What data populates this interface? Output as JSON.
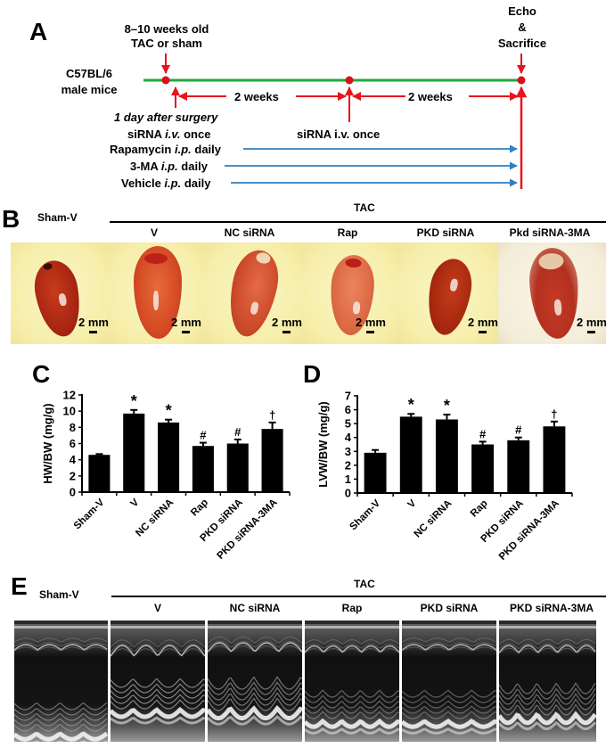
{
  "panelA": {
    "letter": "A",
    "strain": [
      "C57BL/6",
      "male mice"
    ],
    "surgery_label": [
      "8–10 weeks old",
      "TAC or sham"
    ],
    "endpoint_label": [
      "Echo",
      "&",
      "Sacrifice"
    ],
    "interval1": "2 weeks",
    "interval2": "2 weeks",
    "day1_label": "1 day after surgery",
    "sirna1_prefix": "siRNA ",
    "sirna1_route": "i.v.",
    "sirna1_suffix": " once",
    "sirna2_label": "siRNA i.v. once",
    "treatments": [
      {
        "name": "Rapamycin ",
        "route": "i.p.",
        "freq": " daily"
      },
      {
        "name": "3-MA ",
        "route": "i.p.",
        "freq": " daily"
      },
      {
        "name": "Vehicle ",
        "route": "i.p.",
        "freq": " daily"
      }
    ],
    "colors": {
      "timeline": "#1faa3c",
      "arrow": "#e8141c",
      "treatment": "#2f7fc1",
      "dot": "#d5131a"
    }
  },
  "panelB": {
    "letter": "B",
    "sham_label": "Sham-V",
    "group_label": "TAC",
    "columns": [
      "V",
      "NC siRNA",
      "Rap",
      "PKD siRNA",
      "Pkd siRNA-3MA"
    ],
    "scale_bar": "2 mm"
  },
  "chart_data": [
    {
      "type": "bar",
      "panel": "C",
      "title": "",
      "xlabel": "",
      "ylabel": "HW/BW (mg/g)",
      "categories": [
        "Sham-V",
        "V",
        "NC siRNA",
        "Rap",
        "PKD siRNA",
        "PKD siRNA-3MA"
      ],
      "values": [
        4.6,
        9.7,
        8.6,
        5.7,
        6.0,
        7.8
      ],
      "errors": [
        0.1,
        0.45,
        0.35,
        0.4,
        0.5,
        0.8
      ],
      "annotations": [
        "",
        "*",
        "*",
        "#",
        "#",
        "†"
      ],
      "ylim": [
        0,
        12
      ],
      "yticks": [
        0,
        2,
        4,
        6,
        8,
        10,
        12
      ],
      "grid": false,
      "legend": "none"
    },
    {
      "type": "bar",
      "panel": "D",
      "title": "",
      "xlabel": "",
      "ylabel": "LVW/BW (mg/g)",
      "categories": [
        "Sham-V",
        "V",
        "NC siRNA",
        "Rap",
        "PKD siRNA",
        "PKD siRNA-3MA"
      ],
      "values": [
        2.9,
        5.5,
        5.3,
        3.5,
        3.8,
        4.8
      ],
      "errors": [
        0.2,
        0.2,
        0.35,
        0.2,
        0.2,
        0.35
      ],
      "annotations": [
        "",
        "*",
        "*",
        "#",
        "#",
        "†"
      ],
      "ylim": [
        0,
        7
      ],
      "yticks": [
        0,
        1,
        2,
        3,
        4,
        5,
        6,
        7
      ],
      "grid": false,
      "legend": "none"
    }
  ],
  "panelC": {
    "letter": "C"
  },
  "panelD": {
    "letter": "D"
  },
  "panelE": {
    "letter": "E",
    "sham_label": "Sham-V",
    "group_label": "TAC",
    "columns": [
      "V",
      "NC siRNA",
      "Rap",
      "PKD siRNA",
      "PKD siRNA-3MA"
    ]
  }
}
